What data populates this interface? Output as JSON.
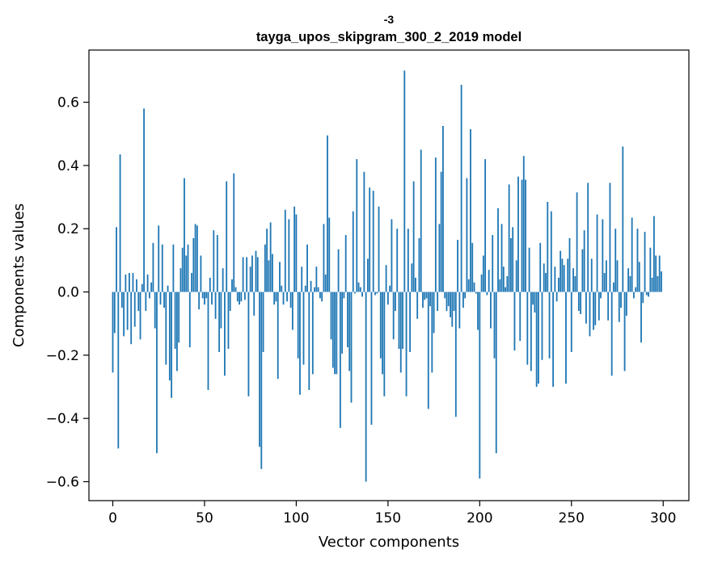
{
  "chart_data": {
    "type": "bar",
    "title_line1": "-3",
    "title_line2": "tayga_upos_skipgram_300_2_2019 model",
    "xlabel": "Vector components",
    "ylabel": "Components values",
    "xlim": [
      -13,
      314
    ],
    "ylim": [
      -0.66,
      0.765
    ],
    "xticks": [
      0,
      50,
      100,
      150,
      200,
      250,
      300
    ],
    "xtick_labels": [
      "0",
      "50",
      "100",
      "150",
      "200",
      "250",
      "300"
    ],
    "yticks": [
      0.6,
      0.4,
      0.2,
      0.0,
      -0.2,
      -0.4,
      -0.6
    ],
    "ytick_labels": [
      "0.6",
      "0.4",
      "0.2",
      "0.0",
      "−0.2",
      "−0.4",
      "−0.6"
    ],
    "bar_color": "#1f77b4",
    "values": [
      -0.255,
      -0.13,
      0.205,
      -0.495,
      0.435,
      -0.05,
      -0.14,
      0.055,
      -0.12,
      0.06,
      -0.165,
      0.06,
      -0.11,
      0.04,
      -0.06,
      -0.15,
      0.025,
      0.58,
      -0.06,
      0.055,
      -0.02,
      0.03,
      0.155,
      -0.115,
      -0.51,
      0.21,
      -0.04,
      0.15,
      -0.05,
      -0.23,
      0.02,
      -0.28,
      -0.335,
      0.15,
      -0.18,
      -0.25,
      -0.16,
      0.075,
      0.14,
      0.36,
      0.115,
      0.15,
      -0.175,
      0.06,
      0.17,
      0.215,
      0.21,
      -0.055,
      0.115,
      -0.02,
      -0.04,
      -0.02,
      -0.31,
      0.045,
      -0.04,
      0.195,
      -0.085,
      0.18,
      -0.19,
      -0.115,
      0.075,
      -0.265,
      0.35,
      -0.18,
      -0.06,
      0.04,
      0.375,
      0.015,
      -0.03,
      -0.04,
      -0.03,
      0.11,
      -0.025,
      0.11,
      -0.33,
      0.08,
      0.115,
      -0.075,
      0.13,
      0.11,
      -0.49,
      -0.56,
      -0.19,
      0.15,
      0.2,
      0.1,
      0.22,
      0.12,
      -0.04,
      -0.03,
      -0.275,
      0.095,
      0.02,
      -0.04,
      0.26,
      -0.03,
      0.23,
      -0.05,
      -0.12,
      0.27,
      0.245,
      -0.21,
      -0.325,
      0.08,
      -0.23,
      0.02,
      0.15,
      -0.31,
      0.035,
      -0.26,
      0.015,
      0.08,
      0.015,
      -0.02,
      -0.03,
      0.215,
      0.055,
      0.495,
      0.235,
      -0.15,
      -0.24,
      -0.26,
      -0.26,
      0.135,
      -0.43,
      -0.195,
      -0.02,
      0.18,
      -0.175,
      -0.25,
      -0.35,
      0.255,
      -0.005,
      0.42,
      0.03,
      0.015,
      -0.015,
      0.38,
      -0.6,
      0.105,
      0.33,
      -0.42,
      0.32,
      -0.01,
      -0.005,
      0.27,
      -0.21,
      -0.26,
      -0.33,
      0.085,
      -0.04,
      0.02,
      0.23,
      -0.15,
      -0.06,
      0.2,
      -0.18,
      -0.255,
      -0.18,
      0.7,
      -0.33,
      0.2,
      -0.19,
      0.09,
      0.35,
      0.045,
      -0.085,
      0.17,
      0.45,
      -0.05,
      -0.025,
      -0.02,
      -0.37,
      -0.045,
      -0.255,
      -0.13,
      0.425,
      -0.06,
      0.215,
      0.38,
      0.525,
      -0.02,
      -0.06,
      -0.045,
      -0.08,
      -0.11,
      -0.06,
      -0.395,
      0.165,
      -0.115,
      0.655,
      -0.05,
      -0.02,
      0.36,
      0.04,
      0.515,
      0.155,
      0.03,
      -0.005,
      -0.12,
      -0.59,
      0.055,
      0.115,
      0.42,
      -0.01,
      0.07,
      -0.115,
      0.18,
      -0.21,
      -0.51,
      0.265,
      0.04,
      0.215,
      0.08,
      0.015,
      0.05,
      0.34,
      0.17,
      0.205,
      -0.185,
      0.1,
      0.365,
      -0.155,
      0.355,
      0.43,
      0.355,
      -0.23,
      0.14,
      -0.25,
      -0.04,
      -0.065,
      -0.3,
      -0.29,
      0.155,
      -0.215,
      0.09,
      0.06,
      0.285,
      -0.21,
      0.255,
      -0.3,
      0.08,
      -0.03,
      0.045,
      0.13,
      0.105,
      0.085,
      -0.29,
      0.105,
      0.17,
      -0.19,
      0.075,
      0.05,
      0.315,
      -0.06,
      -0.07,
      0.135,
      0.195,
      -0.1,
      0.345,
      -0.14,
      0.105,
      -0.12,
      -0.105,
      0.245,
      -0.09,
      -0.02,
      0.23,
      0.06,
      0.1,
      -0.09,
      0.345,
      -0.265,
      0.03,
      0.2,
      0.1,
      -0.095,
      -0.05,
      0.46,
      -0.25,
      -0.075,
      0.075,
      0.05,
      0.235,
      -0.02,
      0.015,
      0.2,
      0.095,
      -0.16,
      -0.035,
      0.19,
      -0.01,
      -0.015,
      0.14,
      0.045,
      0.24,
      0.115,
      0.05,
      0.115,
      0.065
    ]
  }
}
